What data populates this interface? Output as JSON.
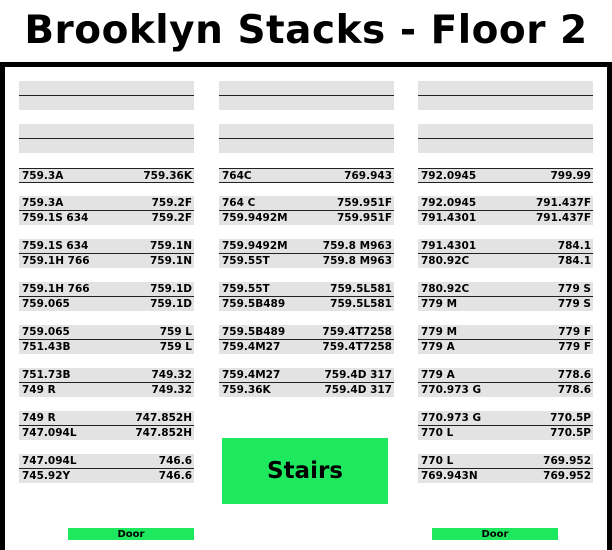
{
  "title": "Brooklyn Stacks - Floor 2",
  "stairs_label": "Stairs",
  "door_label": "Door",
  "columns": [
    {
      "blank_shelves": 2,
      "shelves": [
        {
          "rows": [
            [
              "759.3A",
              "759.36K"
            ]
          ]
        },
        {
          "rows": [
            [
              "759.3A",
              "759.2F"
            ],
            [
              "759.1S 634",
              "759.2F"
            ]
          ]
        },
        {
          "rows": [
            [
              "759.1S 634",
              "759.1N"
            ],
            [
              "759.1H 766",
              "759.1N"
            ]
          ]
        },
        {
          "rows": [
            [
              "759.1H 766",
              "759.1D"
            ],
            [
              "759.065",
              "759.1D"
            ]
          ]
        },
        {
          "rows": [
            [
              "759.065",
              "759 L"
            ],
            [
              "751.43B",
              "759 L"
            ]
          ]
        },
        {
          "rows": [
            [
              "751.73B",
              "749.32"
            ],
            [
              "749 R",
              "749.32"
            ]
          ]
        },
        {
          "rows": [
            [
              "749 R",
              "747.852H"
            ],
            [
              "747.094L",
              "747.852H"
            ]
          ]
        },
        {
          "rows": [
            [
              "747.094L",
              "746.6"
            ],
            [
              "745.92Y",
              "746.6"
            ]
          ]
        }
      ]
    },
    {
      "blank_shelves": 2,
      "shelves": [
        {
          "rows": [
            [
              "764C",
              "769.943"
            ]
          ]
        },
        {
          "rows": [
            [
              "764 C",
              "759.951F"
            ],
            [
              "759.9492M",
              "759.951F"
            ]
          ]
        },
        {
          "rows": [
            [
              "759.9492M",
              "759.8 M963"
            ],
            [
              "759.55T",
              "759.8 M963"
            ]
          ]
        },
        {
          "rows": [
            [
              "759.55T",
              "759.5L581"
            ],
            [
              "759.5B489",
              "759.5L581"
            ]
          ]
        },
        {
          "rows": [
            [
              "759.5B489",
              "759.4T7258"
            ],
            [
              "759.4M27",
              "759.4T7258"
            ]
          ]
        },
        {
          "rows": [
            [
              "759.4M27",
              "759.4D 317"
            ],
            [
              "759.36K",
              "759.4D 317"
            ]
          ]
        }
      ]
    },
    {
      "blank_shelves": 2,
      "shelves": [
        {
          "rows": [
            [
              "792.0945",
              "799.99"
            ]
          ]
        },
        {
          "rows": [
            [
              "792.0945",
              "791.437F"
            ],
            [
              "791.4301",
              "791.437F"
            ]
          ]
        },
        {
          "rows": [
            [
              "791.4301",
              "784.1"
            ],
            [
              "780.92C",
              "784.1"
            ]
          ]
        },
        {
          "rows": [
            [
              "780.92C",
              "779 S"
            ],
            [
              "779 M",
              "779 S"
            ]
          ]
        },
        {
          "rows": [
            [
              "779 M",
              "779 F"
            ],
            [
              "779 A",
              "779 F"
            ]
          ]
        },
        {
          "rows": [
            [
              "779 A",
              "778.6"
            ],
            [
              "770.973 G",
              "778.6"
            ]
          ]
        },
        {
          "rows": [
            [
              "770.973 G",
              "770.5P"
            ],
            [
              "770 L",
              "770.5P"
            ]
          ]
        },
        {
          "rows": [
            [
              "770 L",
              "769.952"
            ],
            [
              "769.943N",
              "769.952"
            ]
          ]
        }
      ]
    }
  ]
}
